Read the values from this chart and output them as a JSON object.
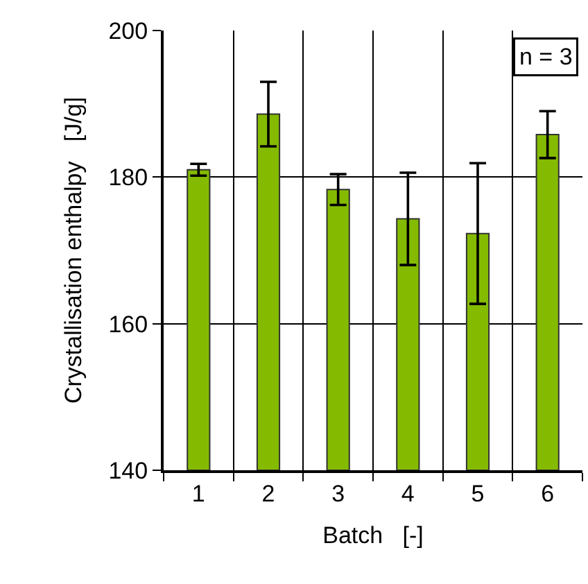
{
  "chart_data": {
    "type": "bar",
    "xlabel": "Batch   [-]",
    "ylabel": "Crystallisation enthalpy   [J/g]",
    "categories": [
      "1",
      "2",
      "3",
      "4",
      "5",
      "6"
    ],
    "series": [
      {
        "color": "#84bb00",
        "values": [
          181.0,
          188.6,
          178.3,
          174.3,
          172.3,
          185.8
        ],
        "errors": [
          0.8,
          4.4,
          2.1,
          6.3,
          9.6,
          3.2
        ]
      }
    ],
    "ylim": [
      140,
      200
    ],
    "yticks": [
      140,
      160,
      180,
      200
    ],
    "grid": true,
    "annotations": [
      "n = 3"
    ]
  }
}
